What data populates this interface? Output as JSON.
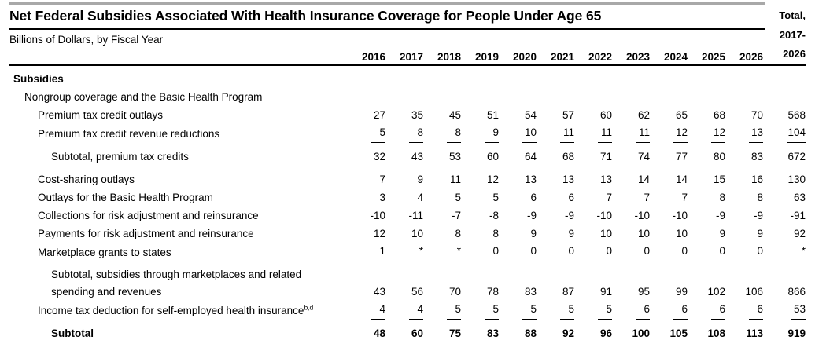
{
  "header": {
    "title": "Net Federal Subsidies Associated With Health Insurance Coverage for People Under Age 65",
    "subtitle": "Billions of Dollars, by Fiscal Year",
    "total_label_lines": [
      "Total,",
      "2017-",
      "2026"
    ],
    "years": [
      "2016",
      "2017",
      "2018",
      "2019",
      "2020",
      "2021",
      "2022",
      "2023",
      "2024",
      "2025",
      "2026"
    ]
  },
  "colors": {
    "top_bar": "#a8a8a8",
    "rule": "#000000",
    "text": "#000000"
  },
  "table": {
    "rows": [
      {
        "label": "Subsidies",
        "indent": 0,
        "bold": true,
        "values": []
      },
      {
        "label": "Nongroup coverage and the Basic Health Program",
        "indent": 1,
        "values": []
      },
      {
        "label": "Premium tax credit outlays",
        "indent": 2,
        "values": [
          "27",
          "35",
          "45",
          "51",
          "54",
          "57",
          "60",
          "62",
          "65",
          "68",
          "70",
          "568"
        ]
      },
      {
        "label": "Premium tax credit revenue reductions",
        "indent": 2,
        "underline": true,
        "values": [
          "5",
          "8",
          "8",
          "9",
          "10",
          "11",
          "11",
          "11",
          "12",
          "12",
          "13",
          "104"
        ]
      },
      {
        "label": "Subtotal, premium tax credits",
        "indent": 3,
        "space_before": true,
        "values": [
          "32",
          "43",
          "53",
          "60",
          "64",
          "68",
          "71",
          "74",
          "77",
          "80",
          "83",
          "672"
        ]
      },
      {
        "label": "Cost-sharing outlays",
        "indent": 2,
        "space_before": true,
        "values": [
          "7",
          "9",
          "11",
          "12",
          "13",
          "13",
          "13",
          "14",
          "14",
          "15",
          "16",
          "130"
        ]
      },
      {
        "label": "Outlays for the Basic Health Program",
        "indent": 2,
        "values": [
          "3",
          "4",
          "5",
          "5",
          "6",
          "6",
          "7",
          "7",
          "7",
          "8",
          "8",
          "63"
        ]
      },
      {
        "label": "Collections for risk adjustment and reinsurance",
        "indent": 2,
        "values": [
          "-10",
          "-11",
          "-7",
          "-8",
          "-9",
          "-9",
          "-10",
          "-10",
          "-10",
          "-9",
          "-9",
          "-91"
        ]
      },
      {
        "label": "Payments for risk adjustment and reinsurance",
        "indent": 2,
        "values": [
          "12",
          "10",
          "8",
          "8",
          "9",
          "9",
          "10",
          "10",
          "10",
          "9",
          "9",
          "92"
        ]
      },
      {
        "label": "Marketplace grants to states",
        "indent": 2,
        "underline": true,
        "values": [
          "1",
          "*",
          "*",
          "0",
          "0",
          "0",
          "0",
          "0",
          "0",
          "0",
          "0",
          "*"
        ]
      },
      {
        "label": "Subtotal, subsidies through marketplaces and related",
        "label_line2": "spending and revenues",
        "indent": 3,
        "space_before": true,
        "values": [
          "43",
          "56",
          "70",
          "78",
          "83",
          "87",
          "91",
          "95",
          "99",
          "102",
          "106",
          "866"
        ]
      },
      {
        "label": "Income tax deduction for self-employed health insurance",
        "sup": "b,d",
        "indent": 2,
        "underline": true,
        "values": [
          "4",
          "4",
          "5",
          "5",
          "5",
          "5",
          "5",
          "6",
          "6",
          "6",
          "6",
          "53"
        ]
      },
      {
        "label": "Subtotal",
        "indent": 3,
        "bold": true,
        "space_before": true,
        "values": [
          "48",
          "60",
          "75",
          "83",
          "88",
          "92",
          "96",
          "100",
          "105",
          "108",
          "113",
          "919"
        ]
      }
    ]
  }
}
